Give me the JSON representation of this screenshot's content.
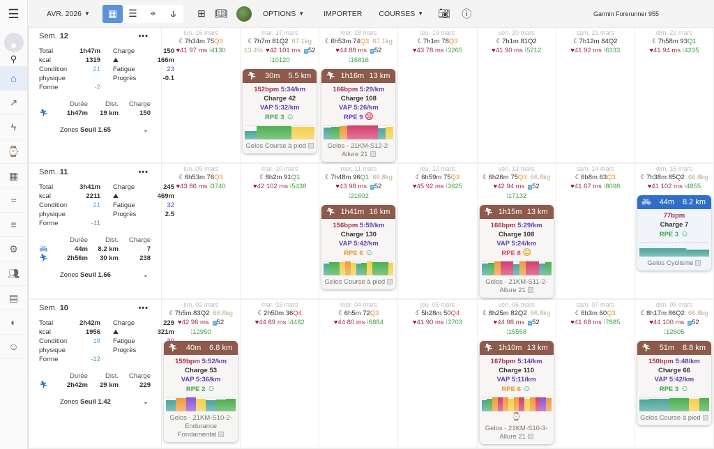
{
  "topbar": {
    "month": "AVR. 2026",
    "options": "OPTIONS",
    "import": "IMPORTER",
    "courses": "COURSES",
    "device": "Garmin Forerunner 955"
  },
  "colors": {
    "accent": "#1f6fd6",
    "run_header": "#8d5a4b",
    "bike_header": "#2f6fc9",
    "Q1": "#43a047",
    "Q2": "#333333",
    "Q3": "#f0902e",
    "Q4": "#e0405a"
  },
  "labels": {
    "sem": "Sem.",
    "total": "Total",
    "kcal": "kcal",
    "condition": "Condition",
    "physique": "physique",
    "forme": "Forme",
    "charge": "Charge",
    "fatigue": "Fatigue",
    "progres": "Progrès",
    "duree": "Durée",
    "dist": "Dist.",
    "zones": "Zones",
    "seuil": "Seuil",
    "vap": "VAP",
    "rpe": "RPE"
  },
  "weeks": [
    {
      "num": "12",
      "total": "1h47m",
      "charge": "150",
      "kcal": "1319",
      "elev": "166m",
      "condition": "21",
      "fatigue": "23",
      "progres": "-0.1",
      "forme": "-2",
      "forme_color": "#999",
      "seuil": "1.65",
      "sports": [
        {
          "icon": "run",
          "duree": "1h47m",
          "dist": "19 km",
          "charge": "150"
        }
      ],
      "days": [
        {
          "date": "lun. 16 mars",
          "sleep": "7h34m",
          "score": "75",
          "q": "Q3",
          "hr": "41",
          "hrv": "97 ms",
          "steps": "4130"
        },
        {
          "date": "mar. 17 mars",
          "sleep": "7h7m",
          "score": "81",
          "q": "Q2",
          "weight": "67.1kg",
          "fat": "13.4%",
          "hr": "42",
          "hrv": "101 ms",
          "stress": "52",
          "steps": "10120",
          "act": {
            "type": "run",
            "dur": "30m",
            "dist": "5.5 km",
            "bpm": "152bpm",
            "pace": "5:34/km",
            "charge": "Charge 42",
            "vap": "5:32/km",
            "rpe": "3",
            "rpe_color": "#43a047",
            "mood": "happy",
            "name": "Gelos Course à pied",
            "zones": [
              [
                "#4aa59a",
                0.6
              ],
              [
                "#4caf50",
                0.95
              ],
              [
                "#4caf50",
                0.95
              ],
              [
                "#4caf50",
                0.95
              ],
              [
                "#f5d04a",
                0.9
              ],
              [
                "#f5d04a",
                0.9
              ]
            ]
          }
        },
        {
          "date": "mer. 18 mars",
          "sleep": "6h53m",
          "score": "74",
          "q": "Q3",
          "weight": "67.1kg",
          "hr": "44",
          "hrv": "88 ms",
          "stress": "52",
          "steps": "16816",
          "act": {
            "type": "run",
            "dur": "1h16m",
            "dist": "13 km",
            "bpm": "166bpm",
            "pace": "5:29/km",
            "charge": "Charge 108",
            "vap": "5:26/km",
            "rpe": "9",
            "rpe_color": "#6a3fc0",
            "mood": "sad",
            "name": "Gelos - 21KM-S12-2-Allure 21",
            "zones": [
              [
                "#4aa59a",
                0.85
              ],
              [
                "#4caf50",
                0.9
              ],
              [
                "#f09a3e",
                0.95
              ],
              [
                "#d43d6e",
                1
              ],
              [
                "#d43d6e",
                1
              ],
              [
                "#d43d6e",
                1
              ],
              [
                "#d43d6e",
                1
              ],
              [
                "#4aa59a",
                0.8
              ],
              [
                "#f5d04a",
                0.9
              ]
            ]
          }
        },
        {
          "date": "jeu. 19 mars",
          "sleep": "7h1m",
          "score": "78",
          "q": "Q3",
          "hr": "43",
          "hrv": "78 ms",
          "steps": "3265"
        },
        {
          "date": "ven. 20 mars",
          "sleep": "7h1m",
          "score": "81",
          "q": "Q2",
          "hr": "41",
          "hrv": "90 ms",
          "steps": "5212"
        },
        {
          "date": "sam. 21 mars",
          "sleep": "7h12m",
          "score": "84",
          "q": "Q2",
          "hr": "41",
          "hrv": "92 ms",
          "steps": "6133"
        },
        {
          "date": "dim. 22 mars",
          "sleep": "7h58m",
          "score": "93",
          "q": "Q1",
          "hr": "41",
          "hrv": "94 ms",
          "steps": "4235"
        }
      ]
    },
    {
      "num": "11",
      "total": "3h41m",
      "charge": "245",
      "kcal": "2211",
      "elev": "469m",
      "condition": "21",
      "fatigue": "32",
      "progres": "2.5",
      "forme": "-11",
      "forme_color": "#43a047",
      "seuil": "1.66",
      "sports": [
        {
          "icon": "bike",
          "duree": "44m",
          "dist": "8.2 km",
          "charge": "7"
        },
        {
          "icon": "run",
          "duree": "2h56m",
          "dist": "30 km",
          "charge": "238"
        }
      ],
      "days": [
        {
          "date": "lun. 09 mars",
          "sleep": "6h53m",
          "score": "76",
          "q": "Q3",
          "hr": "43",
          "hrv": "86 ms",
          "steps": "3740"
        },
        {
          "date": "mar. 10 mars",
          "sleep": "8h2m",
          "score": "91",
          "q": "Q1",
          "hr": "42",
          "hrv": "102 ms",
          "steps": "5438"
        },
        {
          "date": "mer. 11 mars",
          "sleep": "7h48m",
          "score": "96",
          "q": "Q1",
          "weight": "66.8kg",
          "hr": "43",
          "hrv": "98 ms",
          "stress": "52",
          "steps": "21602",
          "act": {
            "type": "run",
            "dur": "1h41m",
            "dist": "16 km",
            "bpm": "156bpm",
            "pace": "5:59/km",
            "charge": "Charge 130",
            "vap": "5:42/km",
            "rpe": "6",
            "rpe_color": "#f0902e",
            "mood": "happy",
            "name": "Gelos Course à pied",
            "zones": [
              [
                "#4aa59a",
                0.85
              ],
              [
                "#4caf50",
                0.95
              ],
              [
                "#4caf50",
                0.95
              ],
              [
                "#f5d04a",
                0.95
              ],
              [
                "#f09a3e",
                1
              ],
              [
                "#f5d04a",
                0.9
              ],
              [
                "#4aa59a",
                0.85
              ],
              [
                "#4caf50",
                0.9
              ],
              [
                "#f5d04a",
                1
              ],
              [
                "#4caf50",
                0.95
              ],
              [
                "#4caf50",
                0.95
              ],
              [
                "#4caf50",
                0.95
              ],
              [
                "#f5d04a",
                0.9
              ]
            ]
          }
        },
        {
          "date": "jeu. 12 mars",
          "sleep": "6h59m",
          "score": "75",
          "q": "Q3",
          "hr": "45",
          "hrv": "92 ms",
          "steps": "3625"
        },
        {
          "date": "ven. 13 mars",
          "sleep": "6h26m",
          "score": "75",
          "q": "Q3",
          "weight": "66.8kg",
          "hr": "42",
          "hrv": "94 ms",
          "stress": "52",
          "steps": "17132",
          "act": {
            "type": "run",
            "dur": "1h15m",
            "dist": "13 km",
            "bpm": "166bpm",
            "pace": "5:29/km",
            "charge": "Charge 108",
            "vap": "5:24/km",
            "rpe": "8",
            "rpe_color": "#e0405a",
            "mood": "neutral",
            "name": "Gelos - 21KM-S11-2-Allure 21",
            "zones": [
              [
                "#4aa59a",
                0.85
              ],
              [
                "#4caf50",
                0.9
              ],
              [
                "#f09a3e",
                1
              ],
              [
                "#d43d6e",
                1
              ],
              [
                "#d43d6e",
                1
              ],
              [
                "#4aa59a",
                0.8
              ],
              [
                "#f09a3e",
                1
              ],
              [
                "#d43d6e",
                1
              ],
              [
                "#d43d6e",
                1
              ],
              [
                "#4aa59a",
                0.85
              ],
              [
                "#4caf50",
                0.95
              ]
            ]
          }
        },
        {
          "date": "sam. 14 mars",
          "sleep": "6h8m",
          "score": "63",
          "q": "Q3",
          "hr": "41",
          "hrv": "67 ms",
          "steps": "8098"
        },
        {
          "date": "dim. 15 mars",
          "sleep": "7h38m",
          "score": "85",
          "q": "Q2",
          "weight": "66.8kg",
          "hr": "41",
          "hrv": "102 ms",
          "steps": "4855",
          "act": {
            "type": "bike",
            "dur": "44m",
            "dist": "8.2 km",
            "bpm": "77bpm",
            "charge": "Charge 7",
            "rpe": "3",
            "rpe_color": "#43a047",
            "mood": "happy",
            "name": "Gelos Cyclisme",
            "zones": [
              [
                "#4aa59a",
                0.6
              ],
              [
                "#4aa59a",
                0.6
              ],
              [
                "#4aa59a",
                0.5
              ]
            ]
          }
        }
      ]
    },
    {
      "num": "10",
      "total": "2h42m",
      "charge": "229",
      "kcal": "1956",
      "elev": "321m",
      "condition": "18",
      "fatigue": "30",
      "progres": "2.6",
      "forme": "-12",
      "forme_color": "#43a047",
      "seuil": "1.42",
      "sports": [
        {
          "icon": "run",
          "duree": "2h42m",
          "dist": "29 km",
          "charge": "229"
        }
      ],
      "days": [
        {
          "date": "lun. 02 mars",
          "sleep": "7h5m",
          "score": "83",
          "q": "Q2",
          "weight": "66.8kg",
          "hr": "42",
          "hrv": "96 ms",
          "stress": "52",
          "steps": "12950",
          "act": {
            "type": "run",
            "dur": "40m",
            "dist": "6.8 km",
            "bpm": "159bpm",
            "pace": "5:52/km",
            "charge": "Charge 53",
            "vap": "5:36/km",
            "rpe": "2",
            "rpe_color": "#43a047",
            "mood": "happy",
            "name": "Gelos - 21KM-S10-2-Endurance Fondamental",
            "zones": [
              [
                "#4aa59a",
                0.8
              ],
              [
                "#f09a3e",
                0.95
              ],
              [
                "#8a55d6",
                1
              ],
              [
                "#f5d04a",
                0.9
              ],
              [
                "#4aa59a",
                0.8
              ],
              [
                "#4caf50",
                0.85
              ],
              [
                "#4caf50",
                0.9
              ]
            ]
          }
        },
        {
          "date": "mar. 03 mars",
          "sleep": "2h50m",
          "score": "36",
          "q": "Q4",
          "hr": "44",
          "hrv": "89 ms",
          "steps": "4482"
        },
        {
          "date": "mer. 04 mars",
          "sleep": "6h5m",
          "score": "72",
          "q": "Q3",
          "hr": "44",
          "hrv": "80 ms",
          "steps": "6884"
        },
        {
          "date": "jeu. 05 mars",
          "sleep": "5h28m",
          "score": "50",
          "q": "Q4",
          "hr": "41",
          "hrv": "90 ms",
          "steps": "3703"
        },
        {
          "date": "ven. 06 mars",
          "sleep": "8h25m",
          "score": "82",
          "q": "Q2",
          "weight": "66.8kg",
          "hr": "44",
          "hrv": "98 ms",
          "stress": "52",
          "steps": "15558",
          "act": {
            "type": "run",
            "watch": true,
            "dur": "1h10m",
            "dist": "13 km",
            "bpm": "167bpm",
            "pace": "5:14/km",
            "charge": "Charge 110",
            "vap": "5:11/km",
            "rpe": "6",
            "rpe_color": "#f0902e",
            "mood": "happy",
            "name": "Gelos - 21KM-S10-3-Allure 21",
            "zones": [
              [
                "#4aa59a",
                0.8
              ],
              [
                "#4caf50",
                0.9
              ],
              [
                "#f09a3e",
                1
              ],
              [
                "#d43d6e",
                1
              ],
              [
                "#f09a3e",
                1
              ],
              [
                "#f5d04a",
                0.9
              ],
              [
                "#f09a3e",
                1
              ],
              [
                "#d43d6e",
                1
              ],
              [
                "#f5d04a",
                0.9
              ],
              [
                "#f09a3e",
                1
              ],
              [
                "#d43d6e",
                1
              ],
              [
                "#8a55d6",
                1
              ],
              [
                "#f09a3e",
                0.95
              ]
            ]
          }
        },
        {
          "date": "sam. 07 mars",
          "sleep": "6h3m",
          "score": "60",
          "q": "Q3",
          "hr": "41",
          "hrv": "68 ms",
          "steps": "7885"
        },
        {
          "date": "dim. 08 mars",
          "sleep": "8h17m",
          "score": "86",
          "q": "Q2",
          "weight": "66.8kg",
          "hr": "44",
          "hrv": "100 ms",
          "stress": "52",
          "steps": "12605",
          "act": {
            "type": "run",
            "dur": "51m",
            "dist": "8.8 km",
            "bpm": "150bpm",
            "pace": "5:48/km",
            "charge": "Charge 66",
            "vap": "5:42/km",
            "rpe": "3",
            "rpe_color": "#43a047",
            "mood": "happy",
            "name": "Gelos Course à pied",
            "zones": [
              [
                "#4aa59a",
                0.85
              ],
              [
                "#4aa59a",
                0.9
              ],
              [
                "#4aa59a",
                0.9
              ],
              [
                "#4caf50",
                0.95
              ],
              [
                "#4caf50",
                0.95
              ],
              [
                "#f5d04a",
                0.9
              ],
              [
                "#4caf50",
                0.95
              ]
            ]
          }
        }
      ]
    }
  ]
}
